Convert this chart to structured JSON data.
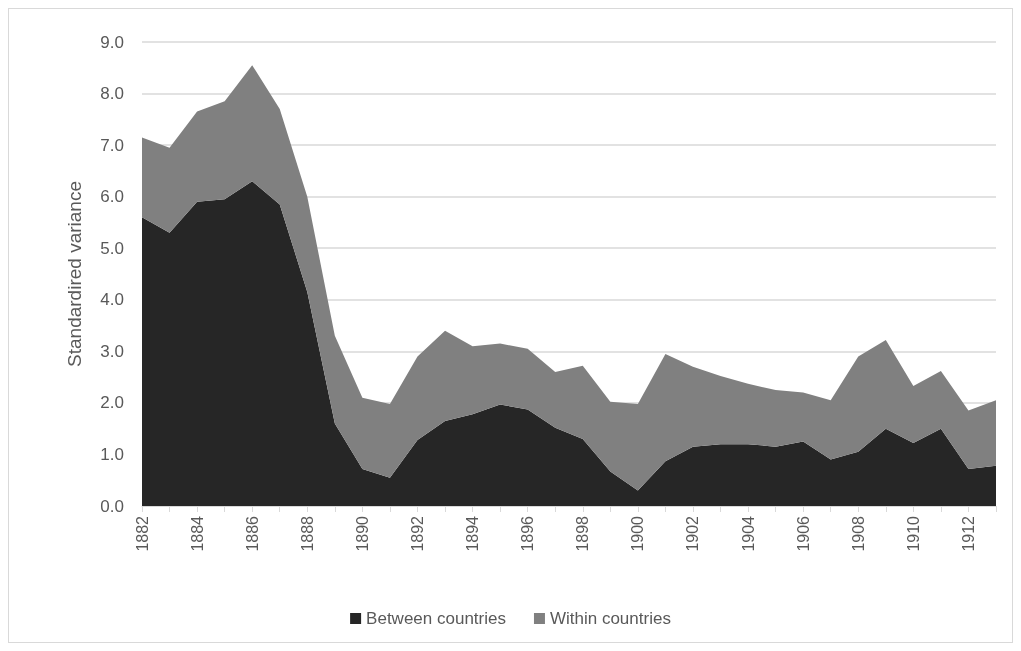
{
  "chart_data": {
    "type": "area",
    "stacked": true,
    "ylabel": "Standardired variance",
    "categories": [
      "1882",
      null,
      "1884",
      null,
      "1886",
      null,
      "1888",
      null,
      "1890",
      null,
      "1892",
      null,
      "1894",
      null,
      "1896",
      null,
      "1898",
      null,
      "1900",
      null,
      "1902",
      null,
      "1904",
      null,
      "1906",
      null,
      "1908",
      null,
      "1910",
      null,
      "1912",
      null
    ],
    "series": [
      {
        "name": "Between countries",
        "color": "#262626",
        "values": [
          5.6,
          5.3,
          5.9,
          5.95,
          6.3,
          5.85,
          4.15,
          1.6,
          0.72,
          0.55,
          1.28,
          1.65,
          1.78,
          1.97,
          1.87,
          1.52,
          1.3,
          0.67,
          0.3,
          0.87,
          1.15,
          1.2,
          1.2,
          1.15,
          1.25,
          0.9,
          1.05,
          1.5,
          1.22,
          1.5,
          0.72,
          0.78
        ]
      },
      {
        "name": "Within countries",
        "color": "#808080",
        "values": [
          1.55,
          1.65,
          1.75,
          1.9,
          2.25,
          1.85,
          1.85,
          1.7,
          1.38,
          1.43,
          1.62,
          1.75,
          1.32,
          1.18,
          1.18,
          1.08,
          1.42,
          1.35,
          1.68,
          2.08,
          1.55,
          1.32,
          1.17,
          1.1,
          0.95,
          1.15,
          1.85,
          1.72,
          1.11,
          1.12,
          1.13,
          1.27
        ]
      }
    ],
    "ylim": [
      0,
      9
    ],
    "yticks": [
      {
        "value": 0,
        "label": "0.0"
      },
      {
        "value": 1,
        "label": "1.0"
      },
      {
        "value": 2,
        "label": "2.0"
      },
      {
        "value": 3,
        "label": "3.0"
      },
      {
        "value": 4,
        "label": "4.0"
      },
      {
        "value": 5,
        "label": "5.0"
      },
      {
        "value": 6,
        "label": "6.0"
      },
      {
        "value": 7,
        "label": "7.0"
      },
      {
        "value": 8,
        "label": "8.0"
      },
      {
        "value": 9,
        "label": "9.0"
      }
    ],
    "grid": "y",
    "legend": "bottom",
    "marker": "none"
  }
}
